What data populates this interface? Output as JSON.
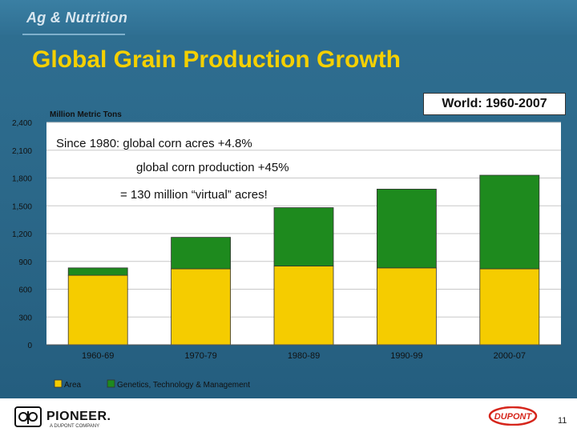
{
  "header": {
    "brand": "Ag & Nutrition",
    "title": "Global Grain Production Growth",
    "region_box": "World: 1960-2007",
    "unit_label": "Million Metric Tons"
  },
  "annotations": [
    "Since 1980: global corn acres +4.8%",
    "global corn production +45%",
    "= 130 million “virtual” acres!"
  ],
  "footer": {
    "pioneer_name": "PIONEER.",
    "pioneer_sub": "A DUPONT COMPANY",
    "dupont_logo": "DUPONT",
    "page_number": "11"
  },
  "colors": {
    "area": "#f5cc00",
    "genetics": "#1e8a1e",
    "plot_bg": "#ffffff",
    "title": "#f5d000"
  },
  "chart_data": {
    "type": "bar",
    "stacked": true,
    "categories": [
      "1960-69",
      "1970-79",
      "1980-89",
      "1990-99",
      "2000-07"
    ],
    "series": [
      {
        "name": "Area",
        "values": [
          750,
          820,
          850,
          830,
          820
        ]
      },
      {
        "name": "Genetics, Technology & Management",
        "values": [
          80,
          340,
          630,
          850,
          1010
        ]
      }
    ],
    "ylim": [
      0,
      2400
    ],
    "yticks": [
      0,
      300,
      600,
      900,
      1200,
      1500,
      1800,
      2100,
      2400
    ],
    "ytick_labels": [
      "0",
      "300",
      "600",
      "900",
      "1,200",
      "1,500",
      "1,800",
      "2,100",
      "2,400"
    ],
    "ylabel": "Million Metric Tons",
    "grid": true,
    "legend_position": "bottom-left"
  }
}
